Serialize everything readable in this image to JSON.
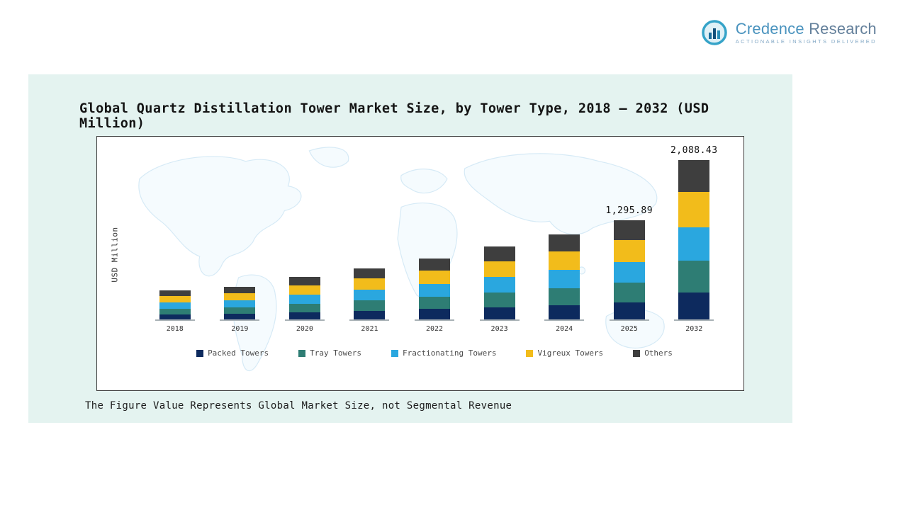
{
  "page": {
    "title": "Global Quartz Distillation Tower Market Size, by Tower Type, 2018 – 2032 (USD Million)",
    "footnote": "The Figure Value Represents Global Market Size, not Segmental Revenue"
  },
  "logo": {
    "brand_first": "Credence",
    "brand_second": "Research",
    "tagline": "Actionable Insights Delivered"
  },
  "chart_data": {
    "type": "bar",
    "stacked": true,
    "title": "Global Quartz Distillation Tower Market Size, by Tower Type, 2018 – 2032 (USD Million)",
    "xlabel": "",
    "ylabel": "USD Million",
    "ylim": [
      0,
      2200
    ],
    "grid": false,
    "legend_position": "bottom",
    "categories": [
      "2018",
      "2019",
      "2020",
      "2021",
      "2022",
      "2023",
      "2024",
      "2025",
      "2032"
    ],
    "series": [
      {
        "name": "Packed Towers",
        "color": "#0d2a5e",
        "values": [
          64,
          72,
          95,
          114,
          136,
          162,
          190,
          220.0,
          355.0
        ]
      },
      {
        "name": "Tray Towers",
        "color": "#2e7d74",
        "values": [
          76,
          86,
          112,
          134,
          160,
          191,
          223,
          259.0,
          418.0
        ]
      },
      {
        "name": "Fractionating Towers",
        "color": "#2aa7df",
        "values": [
          80,
          90,
          118,
          141,
          168,
          201,
          234,
          272.0,
          439.0
        ]
      },
      {
        "name": "Vigreux Towers",
        "color": "#f2bc1b",
        "values": [
          84,
          95,
          123,
          147,
          176,
          210,
          245,
          285.0,
          459.0
        ]
      },
      {
        "name": "Others",
        "color": "#3e3e3e",
        "values": [
          76,
          87,
          112,
          134,
          160,
          191,
          223,
          259.89,
          417.43
        ]
      }
    ],
    "totals": [
      380,
      430,
      560,
      670,
      800,
      955,
      1115,
      1295.89,
      2088.43
    ],
    "data_labels": {
      "2025": "1,295.89",
      "2032": "2,088.43"
    }
  }
}
